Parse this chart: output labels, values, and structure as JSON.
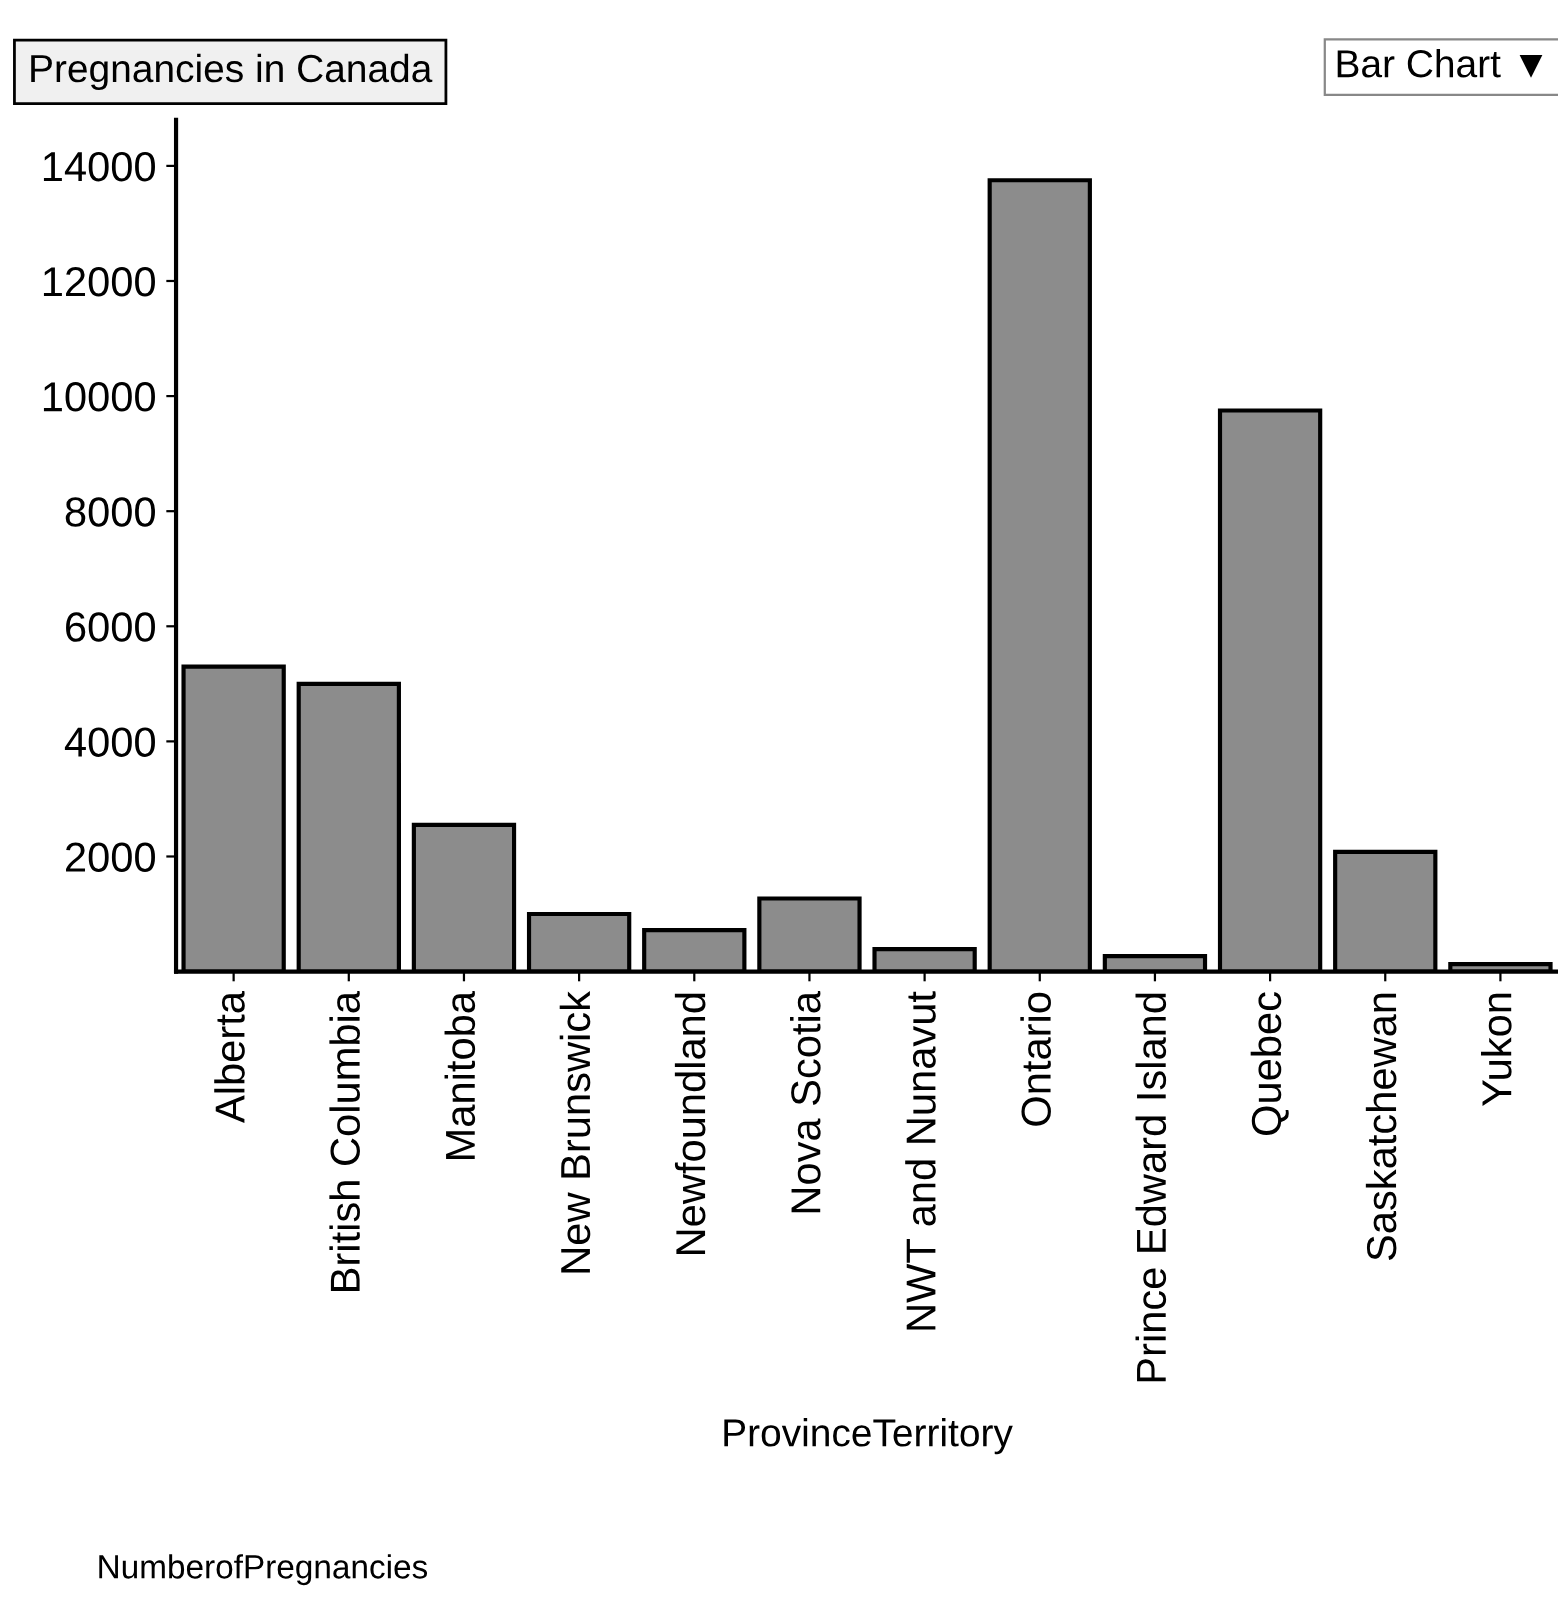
{
  "chart_data": {
    "type": "bar",
    "title": "Pregnancies in Canada",
    "categories": [
      "Alberta",
      "British Columbia",
      "Manitoba",
      "New Brunswick",
      "Newfoundland",
      "Nova Scotia",
      "NWT and Nunavut",
      "Ontario",
      "Prince Edward Island",
      "Quebec",
      "Saskatchewan",
      "Yukon"
    ],
    "values": [
      5300,
      5000,
      2550,
      1000,
      720,
      1270,
      390,
      13750,
      270,
      9750,
      2080,
      130
    ],
    "color": "#8c8c8c",
    "xlabel": "ProvinceTerritory",
    "ylim": [
      0,
      14800
    ],
    "yticks": [
      2000,
      4000,
      6000,
      8000,
      10000,
      12000,
      14000
    ],
    "annotations": [
      "Bar Chart ▼",
      "NumberofPregnancies"
    ],
    "grid": false,
    "legend": false
  }
}
